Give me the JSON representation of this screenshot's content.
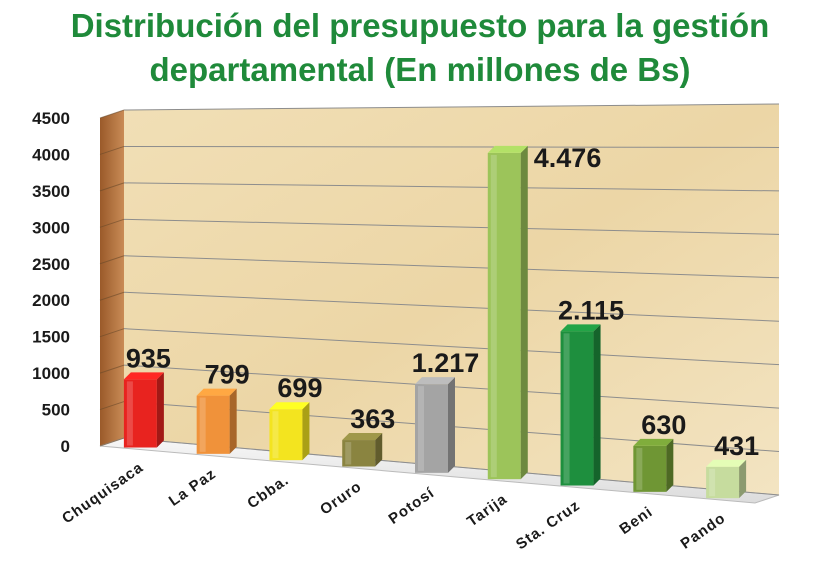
{
  "chart_data": {
    "type": "bar",
    "title_line1": "Distribución del presupuesto para la gestión",
    "title_line2": "departamental (En millones de Bs)",
    "categories": [
      "Chuquisaca",
      "La Paz",
      "Cbba.",
      "Oruro",
      "Potosí",
      "Tarija",
      "Sta. Cruz",
      "Beni",
      "Pando"
    ],
    "values": [
      935,
      799,
      699,
      363,
      1217,
      4476,
      2115,
      630,
      431
    ],
    "value_labels": [
      "935",
      "799",
      "699",
      "363",
      "1.217",
      "4.476",
      "2.115",
      "630",
      "431"
    ],
    "yticks": [
      "0",
      "500",
      "1000",
      "1500",
      "2000",
      "2500",
      "3000",
      "3500",
      "4000",
      "4500"
    ],
    "ylim": [
      0,
      4500
    ],
    "colors": [
      "#e8231f",
      "#f0923a",
      "#f3e41f",
      "#8a8440",
      "#a4a4a4",
      "#9cc45a",
      "#1e8f3e",
      "#6f9634",
      "#c6dc9e"
    ],
    "grid": true
  }
}
